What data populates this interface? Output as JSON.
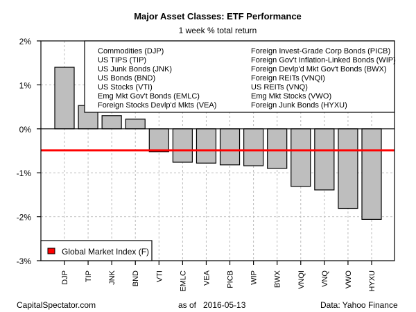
{
  "chart_data": {
    "type": "bar",
    "title": "Major Asset Classes: ETF Performance",
    "subtitle": "1 week % total return",
    "xlabel": "",
    "ylabel": "",
    "ylim": [
      -3,
      2
    ],
    "yticks": [
      2,
      1,
      0,
      -1,
      -2,
      -3
    ],
    "ytick_labels": [
      "2%",
      "1%",
      "0%",
      "-1%",
      "-2%",
      "-3%"
    ],
    "grid": true,
    "categories": [
      "DJP",
      "TIP",
      "JNK",
      "BND",
      "VTI",
      "EMLC",
      "VEA",
      "PICB",
      "WIP",
      "BWX",
      "VNQI",
      "VNQ",
      "VWO",
      "HYXU"
    ],
    "values": [
      1.4,
      0.53,
      0.3,
      0.22,
      -0.52,
      -0.76,
      -0.78,
      -0.82,
      -0.84,
      -0.9,
      -1.31,
      -1.39,
      -1.81,
      -2.06
    ],
    "bar_color": "#bebebe",
    "reference_line": {
      "name": "Global Market Index (F)",
      "value": -0.49,
      "color": "#ff0000"
    },
    "legend_top": {
      "placement": "top-right",
      "left_column": [
        "Commodities (DJP)",
        "US TIPS (TIP)",
        "US Junk Bonds (JNK)",
        "US Bonds (BND)",
        "US Stocks (VTI)",
        "Emg Mkt Gov't Bonds (EMLC)",
        "Foreign Stocks Devlp'd Mkts (VEA)"
      ],
      "right_column": [
        "Foreign Invest-Grade Corp Bonds (PICB)",
        "Foreign Gov't Inflation-Linked Bonds (WIP)",
        "Foreign Devlp'd Mkt Gov't Bonds (BWX)",
        "Foreign REITs (VNQI)",
        "US REITs (VNQ)",
        "Emg Mkt Stocks (VWO)",
        "Foreign Junk Bonds (HYXU)"
      ]
    },
    "legend_bottom": {
      "placement": "bottom-left",
      "label": "Global Market Index (F)",
      "swatch_color": "#ff0000"
    }
  },
  "footer": {
    "source_left": "CapitalSpectator.com",
    "as_of_label": "as of",
    "as_of_date": "2016-05-13",
    "data_source": "Data: Yahoo Finance"
  }
}
